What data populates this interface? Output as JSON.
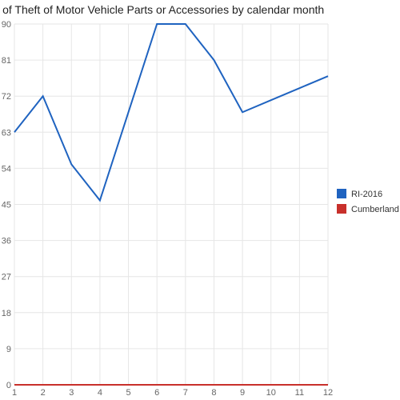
{
  "chart_data": {
    "type": "line",
    "title": "Counts of Theft of Motor Vehicle Parts or Accessories by calendar month",
    "xlabel": "",
    "ylabel": "",
    "x": [
      1,
      2,
      3,
      4,
      5,
      6,
      7,
      8,
      9,
      10,
      11,
      12
    ],
    "xlim": [
      1,
      12
    ],
    "ylim": [
      0,
      90
    ],
    "yticks": [
      0,
      9,
      18,
      27,
      36,
      45,
      54,
      63,
      72,
      81,
      90
    ],
    "grid": true,
    "legend": "right",
    "series": [
      {
        "name": "RI-2016",
        "color": "#1f63c0",
        "values": [
          63,
          72,
          55,
          46,
          68,
          90,
          90,
          81,
          68,
          71,
          74,
          77
        ]
      },
      {
        "name": "Cumberland",
        "color": "#c8302b",
        "values": [
          0,
          0,
          0,
          0,
          0,
          0,
          0,
          0,
          0,
          0,
          0,
          0
        ]
      }
    ]
  }
}
